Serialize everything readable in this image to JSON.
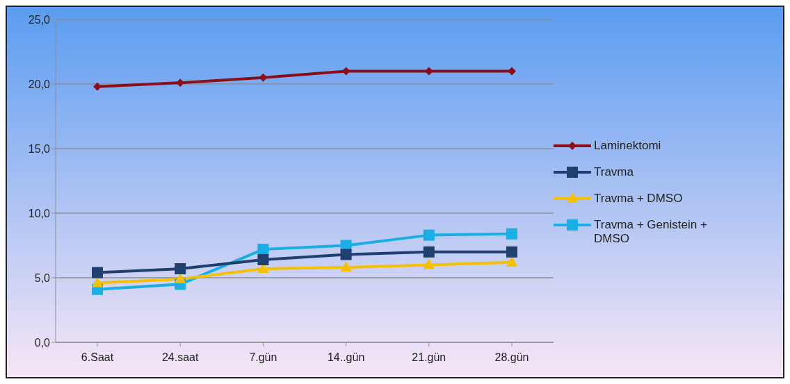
{
  "chart_data": {
    "type": "line",
    "categories": [
      "6.Saat",
      "24.saat",
      "7.gün",
      "14..gün",
      "21.gün",
      "28.gün"
    ],
    "series": [
      {
        "name": "Laminektomi",
        "color": "#8b0f1a",
        "marker": "diamond",
        "values": [
          19.8,
          20.1,
          20.5,
          21.0,
          21.0,
          21.0
        ]
      },
      {
        "name": "Travma",
        "color": "#1f3f6e",
        "marker": "square",
        "values": [
          5.4,
          5.7,
          6.4,
          6.8,
          7.0,
          7.0
        ]
      },
      {
        "name": "Travma + DMSO",
        "color": "#f5c000",
        "marker": "triangle",
        "values": [
          4.6,
          4.9,
          5.7,
          5.8,
          6.0,
          6.2
        ]
      },
      {
        "name": "Travma + Genistein + DMSO",
        "color": "#19aee6",
        "marker": "square",
        "values": [
          4.1,
          4.5,
          7.2,
          7.5,
          8.3,
          8.4
        ]
      }
    ],
    "ylim": [
      0,
      25
    ],
    "yticks": [
      {
        "value": 0,
        "label": "0,0"
      },
      {
        "value": 5,
        "label": "5,0"
      },
      {
        "value": 10,
        "label": "10,0"
      },
      {
        "value": 15,
        "label": "15,0"
      },
      {
        "value": 20,
        "label": "20,0"
      },
      {
        "value": 25,
        "label": "25,0"
      }
    ],
    "grid": "y",
    "legend": "right"
  }
}
